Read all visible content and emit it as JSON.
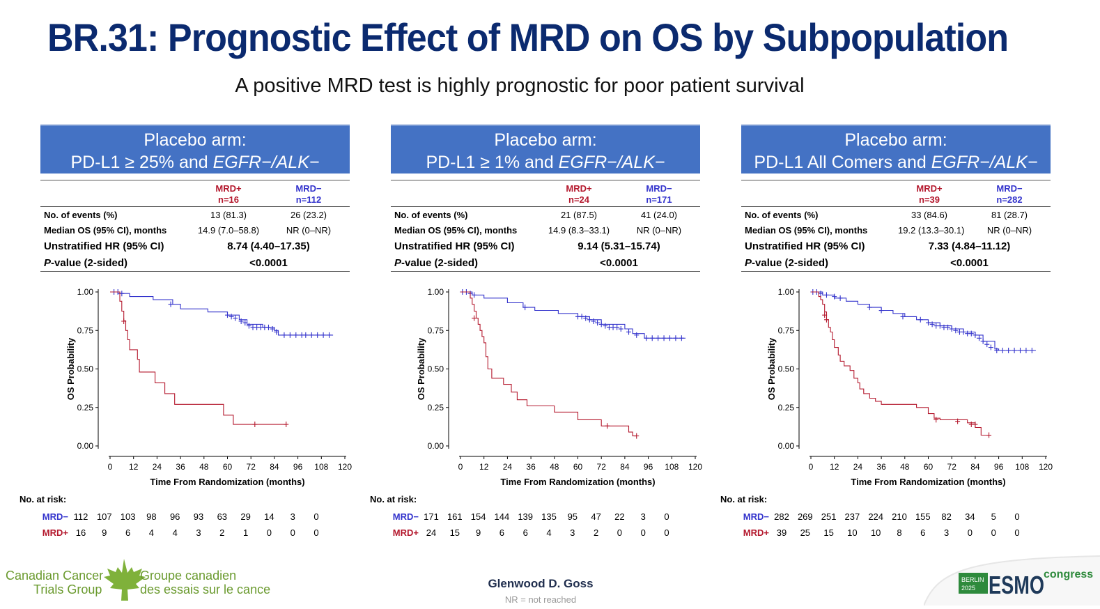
{
  "title": "BR.31: Prognostic Effect of MRD on OS by Subpopulation",
  "subtitle": "A positive MRD test is highly prognostic for poor patient survival",
  "colors": {
    "title": "#0b2a6f",
    "header_bg": "#4472c4",
    "mrd_pos": "#b4182d",
    "mrd_neg": "#3333cc"
  },
  "labels": {
    "arm": "Placebo arm:",
    "egfr": "EGFR−/ALK−",
    "row_events": "No. of events (%)",
    "row_median": "Median OS (95% CI), months",
    "row_hr": "Unstratified HR (95% CI)",
    "row_p_italic": "P",
    "row_p_rest": "-value (2-sided)",
    "mrd_pos": "MRD+",
    "mrd_neg": "MRD−",
    "no_at_risk": "No. at risk:"
  },
  "panels": [
    {
      "header_line2": "PD-L1 ≥ 25% and ",
      "mrd_pos_n": "n=16",
      "mrd_neg_n": "n=112",
      "events_pos": "13 (81.3)",
      "events_neg": "26 (23.2)",
      "median_pos": "14.9 (7.0–58.8)",
      "median_neg": "NR (0–NR)",
      "hr": "8.74 (4.40–17.35)",
      "p_value": "<0.0001",
      "at_risk_neg": [
        "112",
        "107",
        "103",
        "98",
        "96",
        "93",
        "63",
        "29",
        "14",
        "3",
        "0"
      ],
      "at_risk_pos": [
        "16",
        "9",
        "6",
        "4",
        "4",
        "3",
        "2",
        "1",
        "0",
        "0",
        "0"
      ]
    },
    {
      "header_line2": "PD-L1 ≥ 1% and ",
      "mrd_pos_n": "n=24",
      "mrd_neg_n": "n=171",
      "events_pos": "21 (87.5)",
      "events_neg": "41 (24.0)",
      "median_pos": "14.9 (8.3–33.1)",
      "median_neg": "NR (0–NR)",
      "hr": "9.14 (5.31–15.74)",
      "p_value": "<0.0001",
      "at_risk_neg": [
        "171",
        "161",
        "154",
        "144",
        "139",
        "135",
        "95",
        "47",
        "22",
        "3",
        "0"
      ],
      "at_risk_pos": [
        "24",
        "15",
        "9",
        "6",
        "6",
        "4",
        "3",
        "2",
        "0",
        "0",
        "0"
      ]
    },
    {
      "header_line2": "PD-L1 All Comers and ",
      "mrd_pos_n": "n=39",
      "mrd_neg_n": "n=282",
      "events_pos": "33 (84.6)",
      "events_neg": "81 (28.7)",
      "median_pos": "19.2 (13.3–30.1)",
      "median_neg": "NR (0–NR)",
      "hr": "7.33 (4.84–11.12)",
      "p_value": "<0.0001",
      "at_risk_neg": [
        "282",
        "269",
        "251",
        "237",
        "224",
        "210",
        "155",
        "82",
        "34",
        "5",
        "0"
      ],
      "at_risk_pos": [
        "39",
        "25",
        "15",
        "10",
        "10",
        "8",
        "6",
        "3",
        "0",
        "0",
        "0"
      ]
    }
  ],
  "chart_data": [
    {
      "type": "line",
      "step": true,
      "title": "Placebo arm: PD-L1 ≥ 25% and EGFR−/ALK−",
      "xlabel": "Time From Randomization (months)",
      "ylabel": "OS Probability",
      "xlim": [
        0,
        120
      ],
      "ylim": [
        0,
        1
      ],
      "xticks": [
        "0",
        "12",
        "24",
        "36",
        "48",
        "60",
        "72",
        "84",
        "96",
        "108",
        "120"
      ],
      "yticks": [
        "0.00",
        "0.25",
        "0.50",
        "0.75",
        "1.00"
      ],
      "series": [
        {
          "name": "MRD−",
          "points": [
            [
              0,
              1
            ],
            [
              4,
              0.99
            ],
            [
              10,
              0.97
            ],
            [
              22,
              0.95
            ],
            [
              32,
              0.92
            ],
            [
              36,
              0.89
            ],
            [
              50,
              0.87
            ],
            [
              60,
              0.85
            ],
            [
              66,
              0.82
            ],
            [
              70,
              0.79
            ],
            [
              78,
              0.77
            ],
            [
              84,
              0.75
            ],
            [
              86,
              0.72
            ],
            [
              114,
              0.72
            ]
          ],
          "censored": [
            [
              2,
              1
            ],
            [
              4,
              1
            ],
            [
              6,
              0.99
            ],
            [
              31,
              0.92
            ],
            [
              60,
              0.85
            ],
            [
              62,
              0.84
            ],
            [
              64,
              0.83
            ],
            [
              67,
              0.81
            ],
            [
              69,
              0.8
            ],
            [
              71,
              0.78
            ],
            [
              73,
              0.77
            ],
            [
              75,
              0.77
            ],
            [
              77,
              0.77
            ],
            [
              79,
              0.77
            ],
            [
              81,
              0.77
            ],
            [
              83,
              0.76
            ],
            [
              85,
              0.74
            ],
            [
              89,
              0.72
            ],
            [
              92,
              0.72
            ],
            [
              95,
              0.72
            ],
            [
              98,
              0.72
            ],
            [
              100,
              0.72
            ],
            [
              103,
              0.72
            ],
            [
              106,
              0.72
            ],
            [
              109,
              0.72
            ],
            [
              112,
              0.72
            ]
          ]
        },
        {
          "name": "MRD+",
          "points": [
            [
              0,
              1
            ],
            [
              5,
              0.94
            ],
            [
              6,
              0.875
            ],
            [
              7,
              0.8125
            ],
            [
              8,
              0.75
            ],
            [
              9,
              0.69
            ],
            [
              10,
              0.625
            ],
            [
              14,
              0.5625
            ],
            [
              15,
              0.48
            ],
            [
              23,
              0.41
            ],
            [
              28,
              0.34
            ],
            [
              33,
              0.27
            ],
            [
              58,
              0.2
            ],
            [
              63,
              0.14
            ],
            [
              90,
              0.14
            ]
          ],
          "censored": [
            [
              7,
              0.81
            ],
            [
              74,
              0.14
            ],
            [
              90,
              0.14
            ]
          ]
        }
      ]
    },
    {
      "type": "line",
      "step": true,
      "title": "Placebo arm: PD-L1 ≥ 1% and EGFR−/ALK−",
      "xlabel": "Time From Randomization (months)",
      "ylabel": "OS Probability",
      "xlim": [
        0,
        120
      ],
      "ylim": [
        0,
        1
      ],
      "xticks": [
        "0",
        "12",
        "24",
        "36",
        "48",
        "60",
        "72",
        "84",
        "96",
        "108",
        "120"
      ],
      "yticks": [
        "0.00",
        "0.25",
        "0.50",
        "0.75",
        "1.00"
      ],
      "series": [
        {
          "name": "MRD−",
          "points": [
            [
              0,
              1
            ],
            [
              6,
              0.98
            ],
            [
              12,
              0.96
            ],
            [
              24,
              0.93
            ],
            [
              32,
              0.9
            ],
            [
              38,
              0.88
            ],
            [
              50,
              0.86
            ],
            [
              60,
              0.84
            ],
            [
              66,
              0.82
            ],
            [
              72,
              0.79
            ],
            [
              84,
              0.76
            ],
            [
              88,
              0.73
            ],
            [
              94,
              0.7
            ],
            [
              115,
              0.7
            ]
          ],
          "censored": [
            [
              1,
              1
            ],
            [
              3,
              1
            ],
            [
              5,
              0.99
            ],
            [
              7,
              0.98
            ],
            [
              33,
              0.9
            ],
            [
              60,
              0.84
            ],
            [
              62,
              0.84
            ],
            [
              64,
              0.83
            ],
            [
              66,
              0.82
            ],
            [
              68,
              0.81
            ],
            [
              70,
              0.8
            ],
            [
              72,
              0.79
            ],
            [
              74,
              0.78
            ],
            [
              76,
              0.77
            ],
            [
              78,
              0.77
            ],
            [
              80,
              0.77
            ],
            [
              82,
              0.76
            ],
            [
              86,
              0.74
            ],
            [
              90,
              0.72
            ],
            [
              95,
              0.7
            ],
            [
              98,
              0.7
            ],
            [
              101,
              0.7
            ],
            [
              104,
              0.7
            ],
            [
              107,
              0.7
            ],
            [
              110,
              0.7
            ],
            [
              113,
              0.7
            ]
          ]
        },
        {
          "name": "MRD+",
          "points": [
            [
              0,
              1
            ],
            [
              5,
              0.96
            ],
            [
              6,
              0.92
            ],
            [
              7,
              0.875
            ],
            [
              8,
              0.83
            ],
            [
              9,
              0.79
            ],
            [
              10,
              0.75
            ],
            [
              11,
              0.71
            ],
            [
              12,
              0.67
            ],
            [
              13,
              0.58
            ],
            [
              14,
              0.5
            ],
            [
              16,
              0.44
            ],
            [
              22,
              0.4
            ],
            [
              26,
              0.35
            ],
            [
              29,
              0.3
            ],
            [
              34,
              0.26
            ],
            [
              48,
              0.22
            ],
            [
              60,
              0.17
            ],
            [
              72,
              0.13
            ],
            [
              86,
              0.09
            ],
            [
              88,
              0.065
            ],
            [
              90,
              0.065
            ]
          ],
          "censored": [
            [
              7,
              0.83
            ],
            [
              75,
              0.13
            ],
            [
              90,
              0.065
            ]
          ]
        }
      ]
    },
    {
      "type": "line",
      "step": true,
      "title": "Placebo arm: PD-L1 All Comers and EGFR−/ALK−",
      "xlabel": "Time From Randomization (months)",
      "ylabel": "OS Probability",
      "xlim": [
        0,
        120
      ],
      "ylim": [
        0,
        1
      ],
      "xticks": [
        "0",
        "12",
        "24",
        "36",
        "48",
        "60",
        "72",
        "84",
        "96",
        "108",
        "120"
      ],
      "yticks": [
        "0.00",
        "0.25",
        "0.50",
        "0.75",
        "1.00"
      ],
      "series": [
        {
          "name": "MRD−",
          "points": [
            [
              0,
              1
            ],
            [
              6,
              0.98
            ],
            [
              12,
              0.96
            ],
            [
              18,
              0.94
            ],
            [
              24,
              0.92
            ],
            [
              30,
              0.9
            ],
            [
              36,
              0.88
            ],
            [
              42,
              0.86
            ],
            [
              48,
              0.84
            ],
            [
              54,
              0.82
            ],
            [
              60,
              0.8
            ],
            [
              66,
              0.78
            ],
            [
              72,
              0.76
            ],
            [
              78,
              0.74
            ],
            [
              84,
              0.72
            ],
            [
              88,
              0.68
            ],
            [
              94,
              0.63
            ],
            [
              96,
              0.62
            ],
            [
              115,
              0.62
            ]
          ],
          "censored": [
            [
              1,
              1
            ],
            [
              3,
              1
            ],
            [
              5,
              0.99
            ],
            [
              8,
              0.98
            ],
            [
              12,
              0.97
            ],
            [
              15,
              0.96
            ],
            [
              30,
              0.9
            ],
            [
              36,
              0.88
            ],
            [
              47,
              0.84
            ],
            [
              56,
              0.82
            ],
            [
              60,
              0.8
            ],
            [
              62,
              0.79
            ],
            [
              64,
              0.78
            ],
            [
              66,
              0.78
            ],
            [
              68,
              0.77
            ],
            [
              70,
              0.77
            ],
            [
              72,
              0.76
            ],
            [
              74,
              0.75
            ],
            [
              76,
              0.74
            ],
            [
              78,
              0.74
            ],
            [
              80,
              0.73
            ],
            [
              82,
              0.73
            ],
            [
              84,
              0.72
            ],
            [
              86,
              0.7
            ],
            [
              88,
              0.68
            ],
            [
              90,
              0.66
            ],
            [
              92,
              0.64
            ],
            [
              95,
              0.62
            ],
            [
              98,
              0.62
            ],
            [
              101,
              0.62
            ],
            [
              104,
              0.62
            ],
            [
              107,
              0.62
            ],
            [
              110,
              0.62
            ],
            [
              113,
              0.62
            ]
          ]
        },
        {
          "name": "MRD+",
          "points": [
            [
              0,
              1
            ],
            [
              4,
              0.97
            ],
            [
              5,
              0.95
            ],
            [
              6,
              0.92
            ],
            [
              7,
              0.87
            ],
            [
              8,
              0.82
            ],
            [
              9,
              0.77
            ],
            [
              10,
              0.74
            ],
            [
              11,
              0.69
            ],
            [
              12,
              0.64
            ],
            [
              14,
              0.59
            ],
            [
              15,
              0.55
            ],
            [
              17,
              0.52
            ],
            [
              20,
              0.49
            ],
            [
              22,
              0.44
            ],
            [
              24,
              0.41
            ],
            [
              25,
              0.37
            ],
            [
              27,
              0.34
            ],
            [
              30,
              0.31
            ],
            [
              33,
              0.29
            ],
            [
              36,
              0.27
            ],
            [
              54,
              0.25
            ],
            [
              60,
              0.21
            ],
            [
              63,
              0.18
            ],
            [
              66,
              0.17
            ],
            [
              80,
              0.15
            ],
            [
              84,
              0.12
            ],
            [
              87,
              0.07
            ],
            [
              92,
              0.07
            ]
          ],
          "censored": [
            [
              7,
              0.85
            ],
            [
              8,
              0.82
            ],
            [
              64,
              0.17
            ],
            [
              75,
              0.16
            ],
            [
              82,
              0.14
            ],
            [
              84,
              0.14
            ],
            [
              91,
              0.07
            ]
          ]
        }
      ]
    }
  ],
  "footer": {
    "logo_line1_en": "Canadian Cancer",
    "logo_line2_en": "Trials Group",
    "logo_line1_fr": "Groupe canadien",
    "logo_line2_fr": "des essais sur le cancer",
    "presenter": "Glenwood D. Goss",
    "nr_note": "NR = not reached",
    "esmo_berlin": "BERLIN",
    "esmo_year": "2025",
    "esmo_logo": "ESMO",
    "esmo_congress": "congress"
  }
}
